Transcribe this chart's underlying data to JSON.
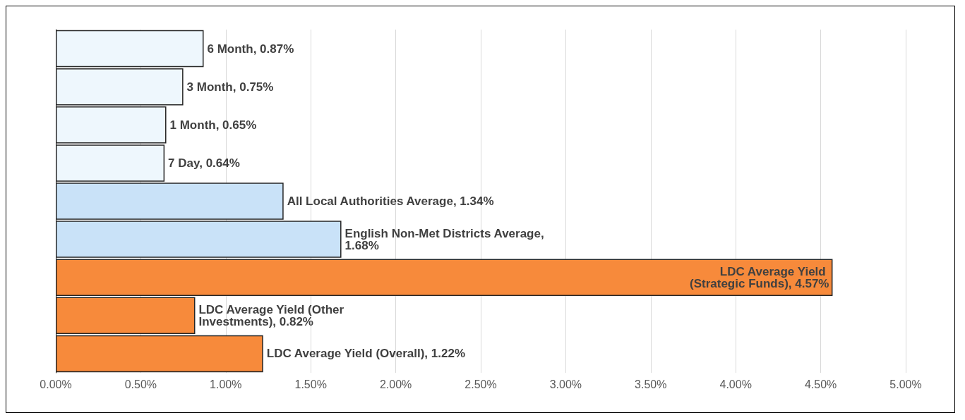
{
  "chart_data": {
    "type": "bar",
    "orientation": "horizontal",
    "categories": [
      null,
      null,
      null,
      null,
      null,
      null,
      null,
      null,
      null
    ],
    "values": [
      0.87,
      0.75,
      0.65,
      0.64,
      1.34,
      1.68,
      4.57,
      0.82,
      1.22
    ],
    "value_labels": [
      "6 Month, 0.87%",
      "3 Month, 0.75%",
      "1 Month, 0.65%",
      "7 Day, 0.64%",
      "All Local Authorities Average, 1.34%",
      "English Non-Met Districts Average, 1.68%",
      "LDC Average Yield (Strategic Funds), 4.57%",
      "LDC Average Yield (Other Investments), 0.82%",
      "LDC Average Yield (Overall), 1.22%"
    ],
    "colors": [
      "#eef7fd",
      "#eef7fd",
      "#eef7fd",
      "#eef7fd",
      "#c9e2f8",
      "#c9e2f8",
      "#f78a3b",
      "#f78a3b",
      "#f78a3b"
    ],
    "xlim": [
      0,
      5
    ],
    "xticks": [
      {
        "value": 0,
        "label": "0.00%"
      },
      {
        "value": 0.5,
        "label": "0.50%"
      },
      {
        "value": 1,
        "label": "1.00%"
      },
      {
        "value": 1.5,
        "label": "1.50%"
      },
      {
        "value": 2,
        "label": "2.00%"
      },
      {
        "value": 2.5,
        "label": "2.50%"
      },
      {
        "value": 3,
        "label": "3.00%"
      },
      {
        "value": 3.5,
        "label": "3.50%"
      },
      {
        "value": 4,
        "label": "4.00%"
      },
      {
        "value": 4.5,
        "label": "4.50%"
      },
      {
        "value": 5,
        "label": "5.00%"
      }
    ],
    "grid": "x",
    "tick_labels": "x"
  }
}
